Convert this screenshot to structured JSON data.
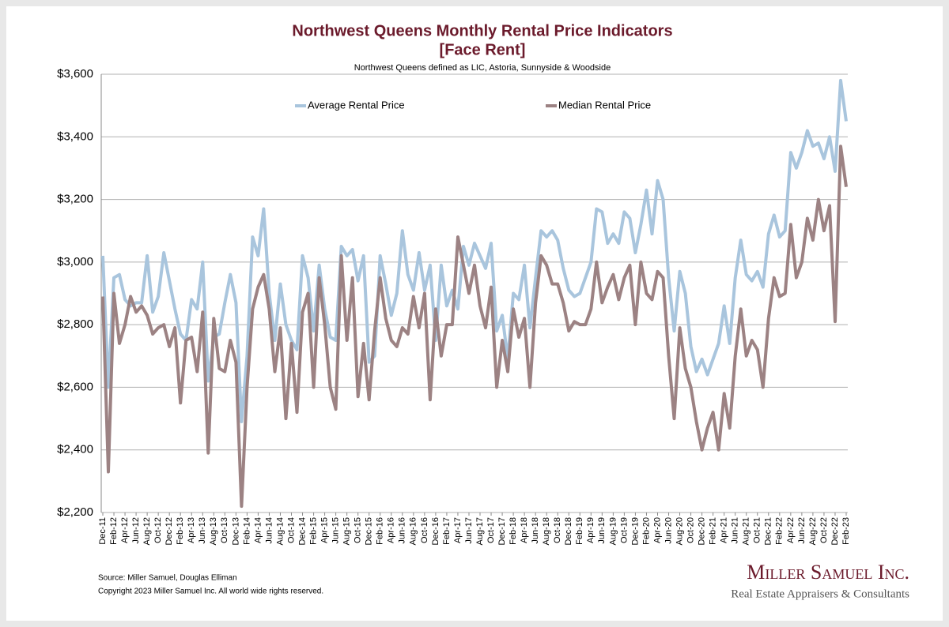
{
  "chart_data": {
    "type": "line",
    "title": "Northwest Queens Monthly Rental Price Indicators",
    "title_line2": "[Face Rent]",
    "subtitle": "Northwest Queens defined as LIC, Astoria, Sunnyside & Woodside",
    "categories": [
      "Dec-11",
      null,
      "Feb-12",
      null,
      "Apr-12",
      null,
      "Jun-12",
      null,
      "Aug-12",
      null,
      "Oct-12",
      null,
      "Dec-12",
      null,
      "Feb-13",
      null,
      "Apr-13",
      null,
      "Jun-13",
      null,
      "Aug-13",
      null,
      "Oct-13",
      null,
      "Dec-13",
      null,
      "Feb-14",
      null,
      "Apr-14",
      null,
      "Jun-14",
      null,
      "Aug-14",
      null,
      "Oct-14",
      null,
      "Dec-14",
      null,
      "Feb-15",
      null,
      "Apr-15",
      null,
      "Jun-15",
      null,
      "Aug-15",
      null,
      "Oct-15",
      null,
      "Dec-15",
      null,
      "Feb-16",
      null,
      "Apr-16",
      null,
      "Jun-16",
      null,
      "Aug-16",
      null,
      "Oct-16",
      null,
      "Dec-16",
      null,
      "Feb-17",
      null,
      "Apr-17",
      null,
      "Jun-17",
      null,
      "Aug-17",
      null,
      "Oct-17",
      null,
      "Dec-17",
      null,
      "Feb-18",
      null,
      "Apr-18",
      null,
      "Jun-18",
      null,
      "Aug-18",
      null,
      "Oct-18",
      null,
      "Dec-18",
      null,
      "Feb-19",
      null,
      "Apr-19",
      null,
      "Jun-19",
      null,
      "Aug-19",
      null,
      "Oct-19",
      null,
      "Dec-19",
      null,
      "Feb-20",
      null,
      "Apr-20",
      null,
      "Jun-20",
      null,
      "Aug-20",
      null,
      "Oct-20",
      null,
      "Dec-20",
      null,
      "Feb-21",
      null,
      "Apr-21",
      null,
      "Jun-21",
      null,
      "Aug-21",
      null,
      "Oct-21",
      null,
      "Dec-21",
      null,
      "Feb-22",
      null,
      "Apr-22",
      null,
      "Jun-22",
      null,
      "Aug-22",
      null,
      "Oct-22",
      null,
      "Dec-22",
      null,
      "Feb-23"
    ],
    "series": [
      {
        "name": "Average Rental Price",
        "color": "#a9c5dd",
        "values": [
          3020,
          2600,
          2950,
          2960,
          2880,
          2860,
          2870,
          2870,
          3020,
          2840,
          2890,
          3030,
          2940,
          2850,
          2770,
          2750,
          2880,
          2850,
          3000,
          2620,
          2760,
          2770,
          2870,
          2960,
          2870,
          2490,
          2700,
          3080,
          3020,
          3170,
          2900,
          2750,
          2930,
          2800,
          2750,
          2720,
          3020,
          2950,
          2780,
          2990,
          2850,
          2760,
          2750,
          3050,
          3020,
          3040,
          2940,
          3020,
          2680,
          2700,
          3020,
          2930,
          2830,
          2900,
          3100,
          2960,
          2910,
          3030,
          2910,
          2990,
          2750,
          2990,
          2860,
          2910,
          2850,
          3050,
          2990,
          3060,
          3020,
          2980,
          3060,
          2780,
          2830,
          2690,
          2900,
          2880,
          2990,
          2790,
          2950,
          3100,
          3080,
          3100,
          3070,
          2980,
          2910,
          2890,
          2900,
          2950,
          3000,
          3170,
          3160,
          3060,
          3090,
          3060,
          3160,
          3140,
          3030,
          3120,
          3230,
          3090,
          3260,
          3200,
          2950,
          2780,
          2970,
          2900,
          2730,
          2650,
          2690,
          2640,
          2690,
          2740,
          2860,
          2740,
          2950,
          3070,
          2960,
          2940,
          2970,
          2920,
          3090,
          3150,
          3080,
          3100,
          3350,
          3300,
          3350,
          3420,
          3370,
          3380,
          3330,
          3400,
          3290,
          3580,
          3450
        ]
      },
      {
        "name": "Median Rental Price",
        "color": "#9c8283",
        "values": [
          2890,
          2330,
          2900,
          2740,
          2800,
          2890,
          2840,
          2860,
          2830,
          2770,
          2790,
          2800,
          2730,
          2790,
          2550,
          2750,
          2760,
          2650,
          2840,
          2390,
          2820,
          2660,
          2650,
          2750,
          2680,
          2220,
          2600,
          2850,
          2920,
          2960,
          2850,
          2650,
          2790,
          2500,
          2740,
          2520,
          2840,
          2900,
          2600,
          2950,
          2800,
          2600,
          2530,
          3020,
          2750,
          2950,
          2570,
          2740,
          2560,
          2780,
          2950,
          2820,
          2750,
          2730,
          2790,
          2770,
          2890,
          2790,
          2900,
          2560,
          2850,
          2700,
          2800,
          2800,
          3080,
          2990,
          2900,
          2990,
          2860,
          2790,
          2920,
          2600,
          2750,
          2650,
          2850,
          2760,
          2820,
          2600,
          2870,
          3020,
          2990,
          2930,
          2930,
          2870,
          2780,
          2810,
          2800,
          2800,
          2850,
          3000,
          2870,
          2920,
          2960,
          2880,
          2950,
          2990,
          2800,
          3000,
          2900,
          2880,
          2970,
          2950,
          2700,
          2500,
          2790,
          2660,
          2600,
          2490,
          2400,
          2470,
          2520,
          2400,
          2580,
          2470,
          2700,
          2850,
          2700,
          2750,
          2720,
          2600,
          2820,
          2950,
          2890,
          2900,
          3120,
          2950,
          3000,
          3140,
          3070,
          3200,
          3100,
          3180,
          2810,
          3370,
          3240
        ]
      }
    ],
    "ylim": [
      2200,
      3600
    ],
    "yticks": [
      {
        "value": 2200,
        "label": "$2,200"
      },
      {
        "value": 2400,
        "label": "$2,400"
      },
      {
        "value": 2600,
        "label": "$2,600"
      },
      {
        "value": 2800,
        "label": "$2,800"
      },
      {
        "value": 3000,
        "label": "$3,000"
      },
      {
        "value": 3200,
        "label": "$3,200"
      },
      {
        "value": 3400,
        "label": "$3,400"
      },
      {
        "value": 3600,
        "label": "$3,600"
      }
    ],
    "grid": true,
    "legend": "top",
    "source": "Source: Miller Samuel, Douglas Elliman",
    "copyright": "Copyright 2023 Miller Samuel Inc.  All world wide rights reserved.",
    "logo": "Miller Samuel Inc.",
    "logo_tagline": "Real Estate Appraisers & Consultants"
  }
}
